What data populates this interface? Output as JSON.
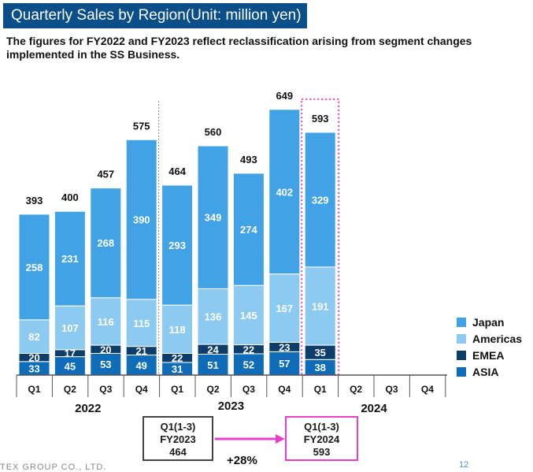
{
  "title": "Quarterly Sales by Region(Unit: million yen)",
  "subtitle": "The figures for FY2022 and FY2023 reflect reclassification arising from segment changes implemented in the SS Business.",
  "colors": {
    "title_bg": "#0b4f8a",
    "Japan": "#41a3e6",
    "Americas": "#8ccaf1",
    "EMEA": "#0d3d6b",
    "ASIA": "#0e6cb8",
    "highlight": "#e83ecb",
    "axis": "#555555"
  },
  "chart_data": {
    "type": "bar",
    "stacked": true,
    "categories": [
      "Q1",
      "Q2",
      "Q3",
      "Q4",
      "Q1",
      "Q2",
      "Q3",
      "Q4",
      "Q1",
      "Q2",
      "Q3",
      "Q4"
    ],
    "groups": [
      {
        "label": "2022",
        "quarters": [
          "Q1",
          "Q2",
          "Q3",
          "Q4"
        ]
      },
      {
        "label": "2023",
        "quarters": [
          "Q1",
          "Q2",
          "Q3",
          "Q4"
        ]
      },
      {
        "label": "2024",
        "quarters": [
          "Q1",
          "Q2",
          "Q3",
          "Q4"
        ]
      }
    ],
    "series": [
      {
        "name": "ASIA",
        "values": [
          33,
          45,
          53,
          49,
          31,
          51,
          52,
          57,
          38,
          null,
          null,
          null
        ]
      },
      {
        "name": "EMEA",
        "values": [
          20,
          17,
          20,
          21,
          22,
          24,
          22,
          23,
          35,
          null,
          null,
          null
        ]
      },
      {
        "name": "Americas",
        "values": [
          82,
          107,
          116,
          115,
          118,
          136,
          145,
          167,
          191,
          null,
          null,
          null
        ]
      },
      {
        "name": "Japan",
        "values": [
          258,
          231,
          268,
          390,
          293,
          349,
          274,
          402,
          329,
          null,
          null,
          null
        ]
      }
    ],
    "totals": [
      393,
      400,
      457,
      575,
      464,
      560,
      493,
      649,
      593,
      null,
      null,
      null
    ],
    "legend": [
      "Japan",
      "Americas",
      "EMEA",
      "ASIA"
    ],
    "legend_position": "right",
    "highlighted_category_index": 8,
    "grid": false
  },
  "comparison": {
    "left_lines": [
      "Q1(1-3)",
      "FY2023",
      "464"
    ],
    "right_lines": [
      "Q1(1-3)",
      "FY2024",
      "593"
    ],
    "growth": "+28%"
  },
  "footer": {
    "company": "TEX GROUP CO., LTD.",
    "page": "12"
  }
}
